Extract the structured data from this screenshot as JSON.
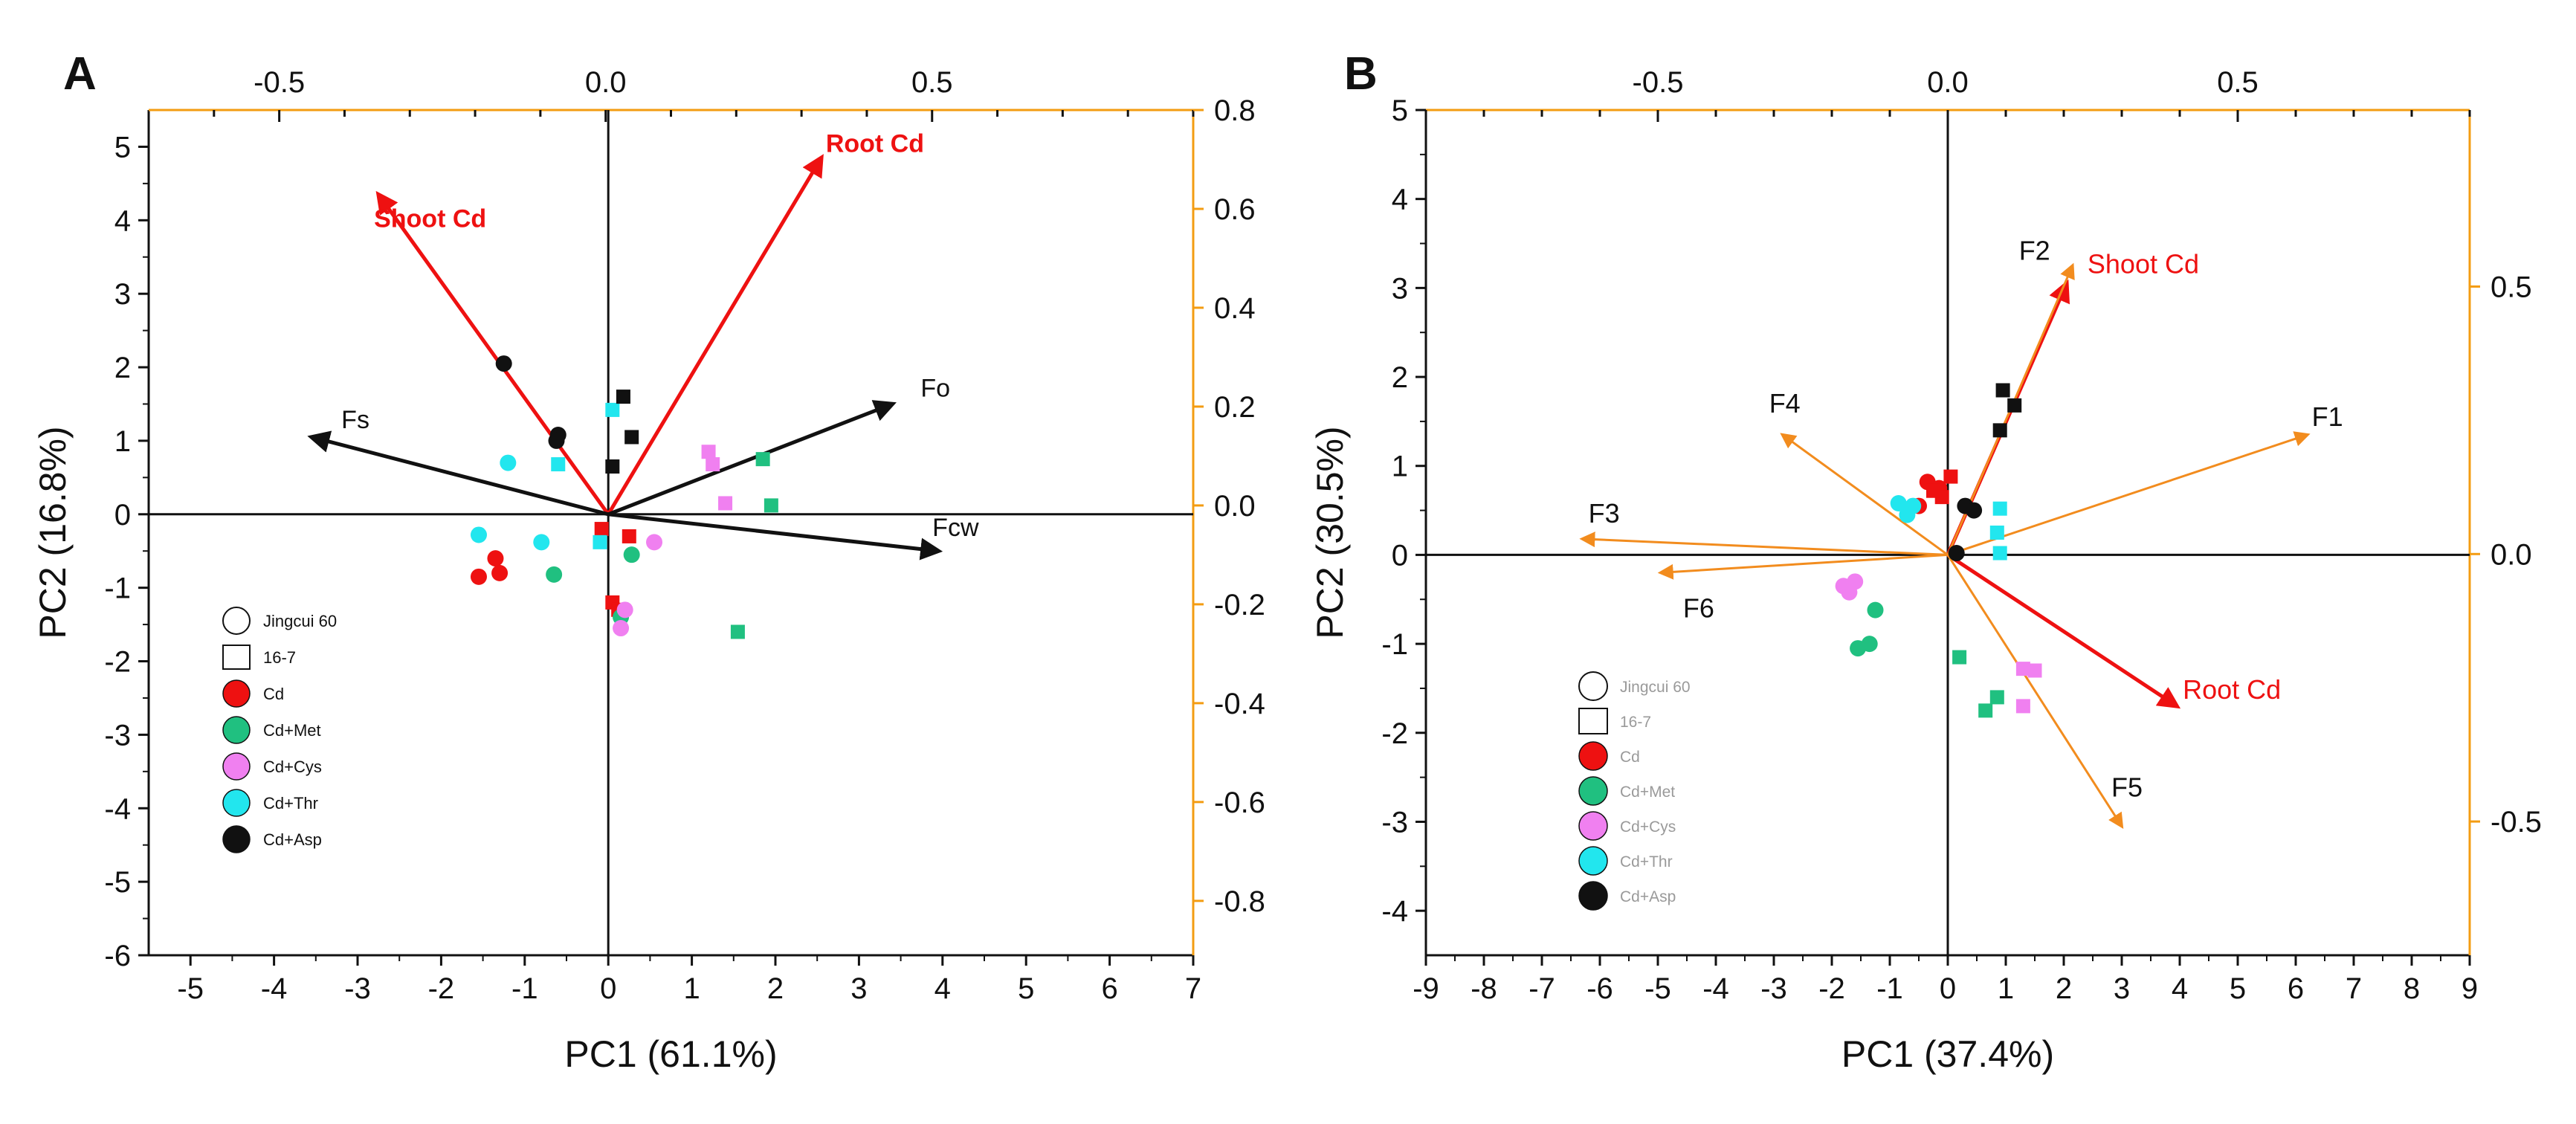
{
  "colors": {
    "axis": "#000000",
    "secondary_axis": "#f39c12",
    "red": "#ee1111",
    "orange": "#f28c1e",
    "black": "#111111",
    "legend_text_b": "#9a9a9a"
  },
  "chart_data": [
    {
      "panel": "A",
      "type": "scatter",
      "xlabel": "PC1 (61.1%)",
      "ylabel": "PC2 (16.8%)",
      "xlim": [
        -5.5,
        7
      ],
      "ylim": [
        -6,
        5.5
      ],
      "xticks": [
        -5,
        -4,
        -3,
        -2,
        -1,
        0,
        1,
        2,
        3,
        4,
        5,
        6,
        7
      ],
      "yticks": [
        -6,
        -5,
        -4,
        -3,
        -2,
        -1,
        0,
        1,
        2,
        3,
        4,
        5
      ],
      "top_axis": {
        "lim": [
          -0.7,
          0.9
        ],
        "ticks": [
          -0.5,
          0.0,
          0.5
        ],
        "tick_labels": [
          "-0.5",
          "0.0",
          "0.5"
        ]
      },
      "right_axis": {
        "lim": [
          -0.91,
          0.8
        ],
        "ticks": [
          0.8,
          0.6,
          0.4,
          0.2,
          0.0,
          -0.2,
          -0.4,
          -0.6,
          -0.8
        ],
        "tick_labels": [
          "0.8",
          "0.6",
          "0.4",
          "0.2",
          "0.0",
          "-0.2",
          "-0.4",
          "-0.6",
          "-0.8"
        ]
      },
      "legend": {
        "position": "bottom-left",
        "entries": [
          {
            "label": "Jingcui 60",
            "marker": "circle-open"
          },
          {
            "label": "16-7",
            "marker": "square-open"
          },
          {
            "label": "Cd",
            "marker": "circle",
            "color": "#ee1111"
          },
          {
            "label": "Cd+Met",
            "marker": "circle",
            "color": "#20c080"
          },
          {
            "label": "Cd+Cys",
            "marker": "circle",
            "color": "#f080f0"
          },
          {
            "label": "Cd+Thr",
            "marker": "circle",
            "color": "#22e6ee"
          },
          {
            "label": "Cd+Asp",
            "marker": "circle",
            "color": "#111111"
          }
        ]
      },
      "series": [
        {
          "name": "Cd",
          "color": "#ee1111",
          "points": [
            {
              "x": -1.55,
              "y": -0.85,
              "m": "circle"
            },
            {
              "x": -1.35,
              "y": -0.6,
              "m": "circle"
            },
            {
              "x": -1.3,
              "y": -0.8,
              "m": "circle"
            },
            {
              "x": 0.05,
              "y": -1.2,
              "m": "square"
            },
            {
              "x": 0.25,
              "y": -0.3,
              "m": "square"
            },
            {
              "x": -0.08,
              "y": -0.2,
              "m": "square"
            },
            {
              "x": 0.12,
              "y": -1.3,
              "m": "square"
            }
          ]
        },
        {
          "name": "Cd+Met",
          "color": "#20c080",
          "points": [
            {
              "x": -0.65,
              "y": -0.82,
              "m": "circle"
            },
            {
              "x": 0.28,
              "y": -0.55,
              "m": "circle"
            },
            {
              "x": 0.15,
              "y": -1.4,
              "m": "circle"
            },
            {
              "x": 1.85,
              "y": 0.75,
              "m": "square"
            },
            {
              "x": 1.95,
              "y": 0.12,
              "m": "square"
            },
            {
              "x": 1.55,
              "y": -1.6,
              "m": "square"
            }
          ]
        },
        {
          "name": "Cd+Cys",
          "color": "#f080f0",
          "points": [
            {
              "x": 0.55,
              "y": -0.38,
              "m": "circle"
            },
            {
              "x": 0.2,
              "y": -1.3,
              "m": "circle"
            },
            {
              "x": 0.15,
              "y": -1.55,
              "m": "circle"
            },
            {
              "x": 1.2,
              "y": 0.85,
              "m": "square"
            },
            {
              "x": 1.25,
              "y": 0.68,
              "m": "square"
            },
            {
              "x": 1.4,
              "y": 0.15,
              "m": "square"
            }
          ]
        },
        {
          "name": "Cd+Thr",
          "color": "#22e6ee",
          "points": [
            {
              "x": -1.2,
              "y": 0.7,
              "m": "circle"
            },
            {
              "x": -1.55,
              "y": -0.28,
              "m": "circle"
            },
            {
              "x": -0.8,
              "y": -0.38,
              "m": "circle"
            },
            {
              "x": -0.6,
              "y": 0.68,
              "m": "square"
            },
            {
              "x": 0.05,
              "y": 1.42,
              "m": "square"
            },
            {
              "x": -0.1,
              "y": -0.38,
              "m": "square"
            }
          ]
        },
        {
          "name": "Cd+Asp",
          "color": "#111111",
          "points": [
            {
              "x": -1.25,
              "y": 2.05,
              "m": "circle"
            },
            {
              "x": -0.6,
              "y": 1.08,
              "m": "circle"
            },
            {
              "x": -0.62,
              "y": 1.0,
              "m": "circle"
            },
            {
              "x": 0.18,
              "y": 1.6,
              "m": "square"
            },
            {
              "x": 0.28,
              "y": 1.05,
              "m": "square"
            },
            {
              "x": 0.05,
              "y": 0.65,
              "m": "square"
            }
          ]
        }
      ],
      "loadings": [
        {
          "label": "Shoot Cd",
          "x": -2.75,
          "y": 4.35,
          "color": "#ee1111",
          "bold": true
        },
        {
          "label": "Root Cd",
          "x": 2.55,
          "y": 4.85,
          "color": "#ee1111",
          "bold": true
        },
        {
          "label": "Fs",
          "x": -3.55,
          "y": 1.05,
          "color": "#111111",
          "bold": false
        },
        {
          "label": "Fo",
          "x": 3.4,
          "y": 1.5,
          "color": "#111111",
          "bold": false
        },
        {
          "label": "Fcw",
          "x": 3.95,
          "y": -0.5,
          "color": "#111111",
          "bold": false
        }
      ]
    },
    {
      "panel": "B",
      "type": "scatter",
      "xlabel": "PC1 (37.4%)",
      "ylabel": "PC2 (30.5%)",
      "xlim": [
        -9,
        9
      ],
      "ylim": [
        -4.5,
        5
      ],
      "xticks": [
        -9,
        -8,
        -7,
        -6,
        -5,
        -4,
        -3,
        -2,
        -1,
        0,
        1,
        2,
        3,
        4,
        5,
        6,
        7,
        8,
        9
      ],
      "yticks": [
        -4,
        -3,
        -2,
        -1,
        0,
        1,
        2,
        3,
        4,
        5
      ],
      "top_axis": {
        "lim": [
          -0.9,
          0.9
        ],
        "ticks": [
          -0.5,
          0.0,
          0.5
        ],
        "tick_labels": [
          "-0.5",
          "0.0",
          "0.5"
        ]
      },
      "right_axis": {
        "lim": [
          -0.75,
          0.83
        ],
        "ticks": [
          0.5,
          0.0,
          -0.5
        ],
        "tick_labels": [
          "0.5",
          "0.0",
          "-0.5"
        ]
      },
      "legend": {
        "position": "bottom-left",
        "entries": [
          {
            "label": "Jingcui 60",
            "marker": "circle-open"
          },
          {
            "label": "16-7",
            "marker": "square-open"
          },
          {
            "label": "Cd",
            "marker": "circle",
            "color": "#ee1111"
          },
          {
            "label": "Cd+Met",
            "marker": "circle",
            "color": "#20c080"
          },
          {
            "label": "Cd+Cys",
            "marker": "circle",
            "color": "#f080f0"
          },
          {
            "label": "Cd+Thr",
            "marker": "circle",
            "color": "#22e6ee"
          },
          {
            "label": "Cd+Asp",
            "marker": "circle",
            "color": "#111111"
          }
        ]
      },
      "series": [
        {
          "name": "Cd",
          "color": "#ee1111",
          "points": [
            {
              "x": -0.35,
              "y": 0.82,
              "m": "circle"
            },
            {
              "x": -0.15,
              "y": 0.75,
              "m": "circle"
            },
            {
              "x": -0.5,
              "y": 0.55,
              "m": "circle"
            },
            {
              "x": 0.05,
              "y": 0.88,
              "m": "square"
            },
            {
              "x": -0.1,
              "y": 0.65,
              "m": "square"
            },
            {
              "x": -0.25,
              "y": 0.72,
              "m": "square"
            }
          ]
        },
        {
          "name": "Cd+Met",
          "color": "#20c080",
          "points": [
            {
              "x": -1.55,
              "y": -1.05,
              "m": "circle"
            },
            {
              "x": -1.35,
              "y": -1.0,
              "m": "circle"
            },
            {
              "x": -1.25,
              "y": -0.62,
              "m": "circle"
            },
            {
              "x": 0.2,
              "y": -1.15,
              "m": "square"
            },
            {
              "x": 0.85,
              "y": -1.6,
              "m": "square"
            },
            {
              "x": 0.65,
              "y": -1.75,
              "m": "square"
            }
          ]
        },
        {
          "name": "Cd+Cys",
          "color": "#f080f0",
          "points": [
            {
              "x": -1.8,
              "y": -0.35,
              "m": "circle"
            },
            {
              "x": -1.7,
              "y": -0.42,
              "m": "circle"
            },
            {
              "x": -1.6,
              "y": -0.3,
              "m": "circle"
            },
            {
              "x": 1.3,
              "y": -1.28,
              "m": "square"
            },
            {
              "x": 1.5,
              "y": -1.3,
              "m": "square"
            },
            {
              "x": 1.3,
              "y": -1.7,
              "m": "square"
            }
          ]
        },
        {
          "name": "Cd+Thr",
          "color": "#22e6ee",
          "points": [
            {
              "x": -0.85,
              "y": 0.58,
              "m": "circle"
            },
            {
              "x": -0.7,
              "y": 0.45,
              "m": "circle"
            },
            {
              "x": -0.6,
              "y": 0.55,
              "m": "circle"
            },
            {
              "x": 0.9,
              "y": 0.52,
              "m": "square"
            },
            {
              "x": 0.85,
              "y": 0.25,
              "m": "square"
            },
            {
              "x": 0.9,
              "y": 0.02,
              "m": "square"
            }
          ]
        },
        {
          "name": "Cd+Asp",
          "color": "#111111",
          "points": [
            {
              "x": 0.15,
              "y": 0.02,
              "m": "circle"
            },
            {
              "x": 0.3,
              "y": 0.55,
              "m": "circle"
            },
            {
              "x": 0.45,
              "y": 0.5,
              "m": "circle"
            },
            {
              "x": 0.95,
              "y": 1.85,
              "m": "square"
            },
            {
              "x": 1.15,
              "y": 1.68,
              "m": "square"
            },
            {
              "x": 0.9,
              "y": 1.4,
              "m": "square"
            }
          ]
        }
      ],
      "loadings": [
        {
          "label": "Shoot Cd",
          "x": 2.05,
          "y": 3.05,
          "color": "#ee1111",
          "bold": false
        },
        {
          "label": "Root Cd",
          "x": 3.95,
          "y": -1.7,
          "color": "#ee1111",
          "bold": false
        },
        {
          "label": "F1",
          "x": 6.2,
          "y": 1.35,
          "color": "#f28c1e",
          "bold": false
        },
        {
          "label": "F2",
          "x": 2.15,
          "y": 3.25,
          "color": "#f28c1e",
          "bold": false
        },
        {
          "label": "F3",
          "x": -6.3,
          "y": 0.18,
          "color": "#f28c1e",
          "bold": false
        },
        {
          "label": "F4",
          "x": -2.85,
          "y": 1.35,
          "color": "#f28c1e",
          "bold": false
        },
        {
          "label": "F5",
          "x": 3.0,
          "y": -3.05,
          "color": "#f28c1e",
          "bold": false
        },
        {
          "label": "F6",
          "x": -4.95,
          "y": -0.2,
          "color": "#f28c1e",
          "bold": false
        }
      ]
    }
  ]
}
